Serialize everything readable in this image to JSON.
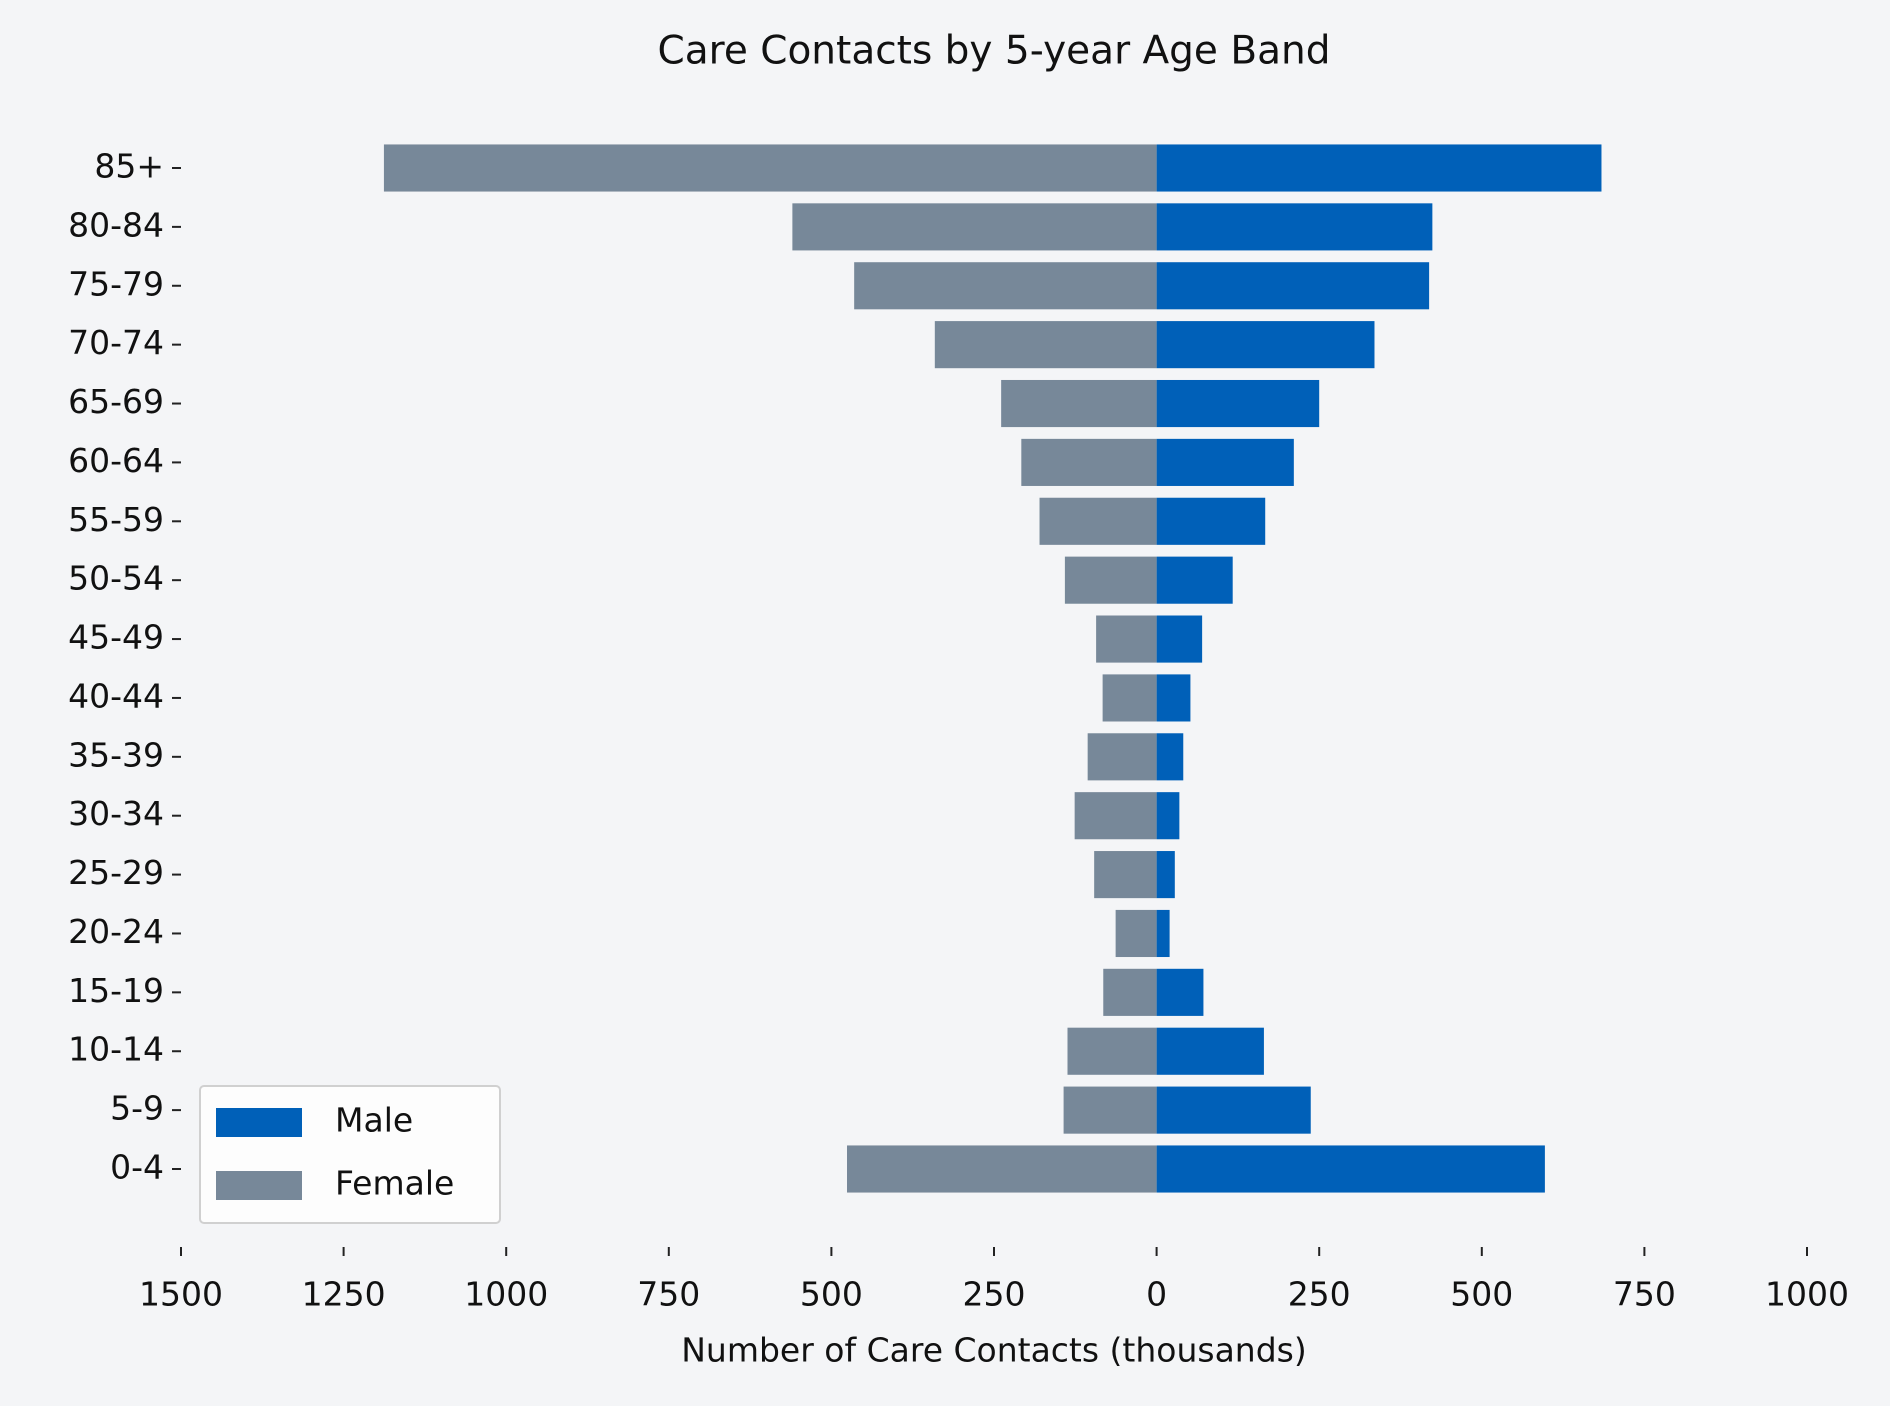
{
  "chart_data": {
    "type": "pyramid",
    "title": "Care Contacts by 5-year Age Band",
    "xlabel": "Number of Care Contacts (thousands)",
    "categories": [
      "0-4",
      "5-9",
      "10-14",
      "15-19",
      "20-24",
      "25-29",
      "30-34",
      "35-39",
      "40-44",
      "45-49",
      "50-54",
      "55-59",
      "60-64",
      "65-69",
      "70-74",
      "75-79",
      "80-84",
      "85+"
    ],
    "series": [
      {
        "name": "Male",
        "color": "#0060b8",
        "values": [
          597,
          237,
          165,
          72,
          20,
          28,
          35,
          41,
          52,
          70,
          117,
          167,
          211,
          250,
          335,
          419,
          424,
          684
        ]
      },
      {
        "name": "Female",
        "color": "#778899",
        "values": [
          -476,
          -143,
          -137,
          -82,
          -63,
          -96,
          -126,
          -106,
          -83,
          -93,
          -141,
          -180,
          -208,
          -239,
          -341,
          -465,
          -560,
          -1188
        ]
      }
    ],
    "xlim": [
      -1500,
      1000
    ],
    "xticks": [
      {
        "value": -1500,
        "label": "1500"
      },
      {
        "value": -1250,
        "label": "1250"
      },
      {
        "value": -1000,
        "label": "1000"
      },
      {
        "value": -750,
        "label": "750"
      },
      {
        "value": -500,
        "label": "500"
      },
      {
        "value": -250,
        "label": "250"
      },
      0,
      250,
      500,
      750,
      1000
    ],
    "legend": "lower left"
  }
}
